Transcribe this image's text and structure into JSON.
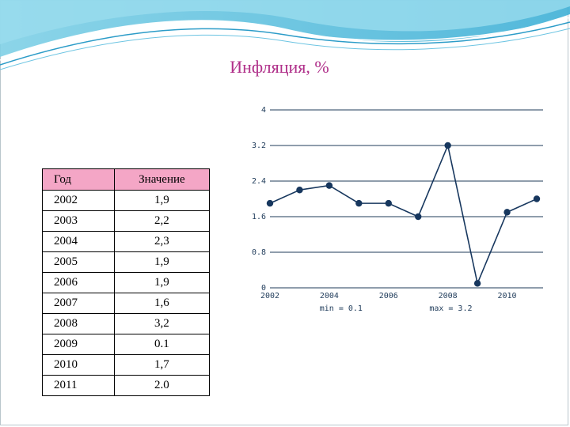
{
  "title": "Инфляция, %",
  "table": {
    "headers": [
      "Год",
      "Значение"
    ],
    "rows": [
      [
        "2002",
        "1,9"
      ],
      [
        "2003",
        "2,2"
      ],
      [
        "2004",
        "2,3"
      ],
      [
        "2005",
        "1,9"
      ],
      [
        "2006",
        "1,9"
      ],
      [
        "2007",
        "1,6"
      ],
      [
        "2008",
        "3,2"
      ],
      [
        "2009",
        "0.1"
      ],
      [
        "2010",
        "1,7"
      ],
      [
        "2011",
        "2.0"
      ]
    ]
  },
  "chart_data": {
    "type": "line",
    "x": [
      2002,
      2003,
      2004,
      2005,
      2006,
      2007,
      2008,
      2009,
      2010,
      2011
    ],
    "series": [
      {
        "values": [
          1.9,
          2.2,
          2.3,
          1.9,
          1.9,
          1.6,
          3.2,
          0.1,
          1.7,
          2.0
        ]
      }
    ],
    "yticks": [
      "0",
      "0.8",
      "1.6",
      "2.4",
      "3.2",
      "4"
    ],
    "ytick_values": [
      0,
      0.8,
      1.6,
      2.4,
      3.2,
      4
    ],
    "xticks": [
      "2002",
      "2004",
      "2006",
      "2008",
      "2010"
    ],
    "xtick_values": [
      2002,
      2004,
      2006,
      2008,
      2010
    ],
    "ylim": [
      0,
      4
    ],
    "xlim": [
      2002,
      2011
    ],
    "grid": true,
    "annotations": [
      "min = 0.1",
      "max = 3.2"
    ],
    "color": "#17375e"
  }
}
